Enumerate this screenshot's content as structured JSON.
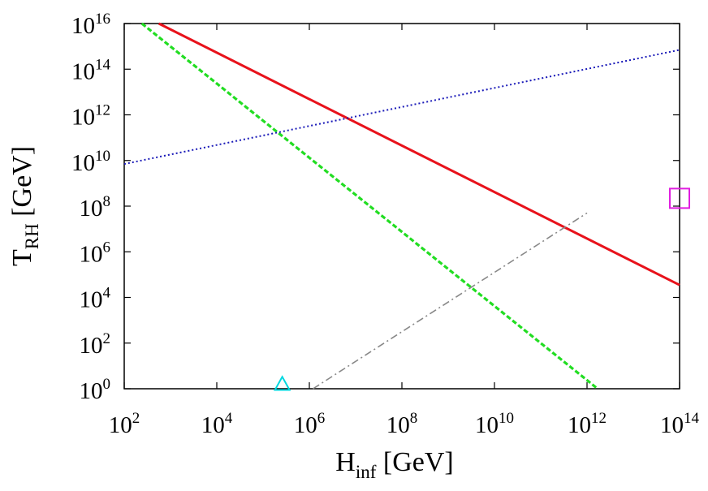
{
  "chart_data": {
    "type": "line",
    "xscale": "log",
    "yscale": "log",
    "xlim": [
      100,
      100000000000000
    ],
    "ylim": [
      1,
      10000000000000000
    ],
    "xlabel": {
      "main": "H",
      "sub": "inf",
      "unit": " [GeV]"
    },
    "ylabel": {
      "main": "T",
      "sub": "RH",
      "unit": " [GeV]"
    },
    "x_ticks": [
      {
        "base": "10",
        "exp": "2",
        "value": 100
      },
      {
        "base": "10",
        "exp": "4",
        "value": 10000
      },
      {
        "base": "10",
        "exp": "6",
        "value": 1000000
      },
      {
        "base": "10",
        "exp": "8",
        "value": 100000000
      },
      {
        "base": "10",
        "exp": "10",
        "value": 10000000000
      },
      {
        "base": "10",
        "exp": "12",
        "value": 1000000000000
      },
      {
        "base": "10",
        "exp": "14",
        "value": 100000000000000
      }
    ],
    "y_ticks": [
      {
        "base": "10",
        "exp": "0",
        "value": 1
      },
      {
        "base": "10",
        "exp": "2",
        "value": 100
      },
      {
        "base": "10",
        "exp": "4",
        "value": 10000
      },
      {
        "base": "10",
        "exp": "6",
        "value": 1000000
      },
      {
        "base": "10",
        "exp": "8",
        "value": 100000000
      },
      {
        "base": "10",
        "exp": "10",
        "value": 10000000000
      },
      {
        "base": "10",
        "exp": "12",
        "value": 1000000000000
      },
      {
        "base": "10",
        "exp": "14",
        "value": 100000000000000
      },
      {
        "base": "10",
        "exp": "16",
        "value": 10000000000000000
      }
    ],
    "series": [
      {
        "name": "red-solid",
        "color": "#e8121b",
        "style": "solid",
        "x": [
          560,
          100000000000000
        ],
        "y": [
          10000000000000000,
          35000
        ]
      },
      {
        "name": "green-dashed",
        "color": "#22dd22",
        "style": "dashed",
        "x": [
          240,
          1700000000000
        ],
        "y": [
          10000000000000000,
          1
        ]
      },
      {
        "name": "blue-dotted",
        "color": "#1a1ab8",
        "style": "dotted",
        "x": [
          100,
          100000000000000
        ],
        "y": [
          7000000000,
          700000000000000
        ]
      },
      {
        "name": "gray-dashdot",
        "color": "#888888",
        "style": "dashdot",
        "x": [
          1200000,
          1000000000000
        ],
        "y": [
          1,
          50000000
        ]
      }
    ],
    "markers": [
      {
        "name": "cyan-triangle",
        "shape": "triangle",
        "color": "#00d8e0",
        "x": 260000,
        "y": 1.6
      },
      {
        "name": "magenta-square",
        "shape": "square",
        "color": "#e01ee0",
        "x": 100000000000000,
        "y": 220000000
      }
    ]
  }
}
